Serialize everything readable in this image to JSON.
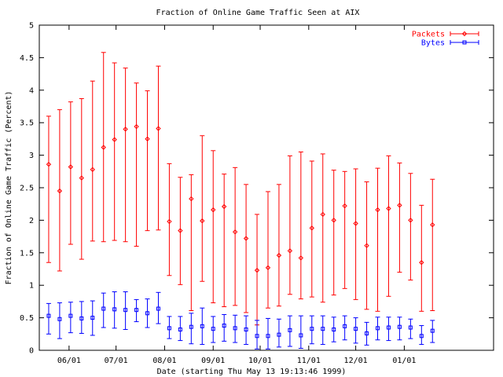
{
  "chart_data": {
    "type": "scatter",
    "title": "Fraction of Online Game Traffic Seen at AIX",
    "xlabel": "Date (starting Thu May 13 19:13:46 1999)",
    "ylabel": "Fraction of Online Game Traffic (Percent)",
    "ylim": [
      0,
      5
    ],
    "yticks": [
      "0",
      "0.5",
      "1",
      "1.5",
      "2",
      "2.5",
      "3",
      "3.5",
      "4",
      "4.5",
      "5"
    ],
    "xlim": [
      "1999-05-13",
      "2000-02-27"
    ],
    "xticks": [
      {
        "date": "1999-06-01",
        "label": "06/01"
      },
      {
        "date": "1999-07-01",
        "label": "07/01"
      },
      {
        "date": "1999-08-01",
        "label": "08/01"
      },
      {
        "date": "1999-09-01",
        "label": "09/01"
      },
      {
        "date": "1999-10-01",
        "label": "10/01"
      },
      {
        "date": "1999-11-01",
        "label": "11/01"
      },
      {
        "date": "1999-12-01",
        "label": "12/01"
      },
      {
        "date": "2000-01-01",
        "label": "01/01"
      }
    ],
    "grid": false,
    "legend_position": "top-right",
    "x": [
      "1999-05-19",
      "1999-05-26",
      "1999-06-02",
      "1999-06-09",
      "1999-06-16",
      "1999-06-23",
      "1999-06-30",
      "1999-07-07",
      "1999-07-14",
      "1999-07-21",
      "1999-07-28",
      "1999-08-04",
      "1999-08-11",
      "1999-08-18",
      "1999-08-25",
      "1999-09-01",
      "1999-09-08",
      "1999-09-15",
      "1999-09-22",
      "1999-09-29",
      "1999-10-06",
      "1999-10-13",
      "1999-10-20",
      "1999-10-27",
      "1999-11-03",
      "1999-11-10",
      "1999-11-17",
      "1999-11-24",
      "1999-12-01",
      "1999-12-08",
      "1999-12-15",
      "1999-12-22",
      "1999-12-29",
      "2000-01-05",
      "2000-01-12",
      "2000-01-19"
    ],
    "series": [
      {
        "name": "Packets",
        "color": "#ff0000",
        "marker": "diamond",
        "y": [
          2.86,
          2.45,
          2.82,
          2.65,
          2.78,
          3.12,
          3.24,
          3.4,
          3.44,
          3.25,
          3.41,
          1.98,
          1.84,
          2.33,
          1.99,
          2.16,
          2.21,
          1.82,
          1.72,
          1.23,
          1.27,
          1.46,
          1.53,
          1.42,
          1.88,
          2.09,
          2.0,
          2.22,
          1.95,
          1.61,
          2.16,
          2.18,
          2.23,
          2.0,
          1.35,
          1.93
        ],
        "low": [
          1.35,
          1.22,
          1.63,
          1.4,
          1.68,
          1.67,
          1.69,
          1.67,
          1.6,
          1.84,
          1.85,
          1.15,
          1.01,
          0.61,
          1.06,
          0.73,
          0.67,
          0.69,
          0.58,
          0.39,
          0.65,
          0.68,
          0.86,
          0.79,
          0.82,
          0.74,
          0.85,
          0.95,
          0.78,
          0.63,
          0.6,
          0.83,
          1.2,
          1.08,
          0.6,
          0.61
        ],
        "high": [
          3.6,
          3.7,
          3.82,
          3.87,
          4.14,
          4.58,
          4.42,
          4.34,
          4.11,
          3.99,
          4.37,
          2.87,
          2.66,
          2.7,
          3.3,
          3.07,
          2.71,
          2.81,
          2.55,
          2.09,
          2.44,
          2.55,
          2.99,
          3.05,
          2.91,
          3.02,
          2.77,
          2.75,
          2.79,
          2.59,
          2.8,
          2.99,
          2.88,
          2.72,
          2.23,
          2.63
        ]
      },
      {
        "name": "Bytes",
        "color": "#0000ff",
        "marker": "square",
        "y": [
          0.53,
          0.48,
          0.53,
          0.49,
          0.5,
          0.64,
          0.63,
          0.62,
          0.62,
          0.57,
          0.64,
          0.34,
          0.32,
          0.36,
          0.37,
          0.33,
          0.38,
          0.34,
          0.32,
          0.22,
          0.22,
          0.24,
          0.31,
          0.23,
          0.33,
          0.33,
          0.32,
          0.37,
          0.33,
          0.26,
          0.34,
          0.35,
          0.36,
          0.35,
          0.22,
          0.3
        ],
        "low": [
          0.25,
          0.18,
          0.27,
          0.26,
          0.23,
          0.35,
          0.34,
          0.32,
          0.44,
          0.35,
          0.41,
          0.18,
          0.15,
          0.1,
          0.09,
          0.12,
          0.14,
          0.12,
          0.09,
          0.02,
          0.02,
          0.05,
          0.06,
          0.03,
          0.1,
          0.09,
          0.13,
          0.16,
          0.11,
          0.08,
          0.16,
          0.15,
          0.16,
          0.18,
          0.09,
          0.12
        ],
        "high": [
          0.72,
          0.73,
          0.74,
          0.75,
          0.76,
          0.88,
          0.9,
          0.9,
          0.78,
          0.79,
          0.89,
          0.52,
          0.52,
          0.57,
          0.65,
          0.52,
          0.55,
          0.54,
          0.53,
          0.46,
          0.49,
          0.48,
          0.53,
          0.53,
          0.53,
          0.53,
          0.51,
          0.53,
          0.5,
          0.43,
          0.51,
          0.51,
          0.51,
          0.48,
          0.38,
          0.46
        ]
      }
    ]
  }
}
